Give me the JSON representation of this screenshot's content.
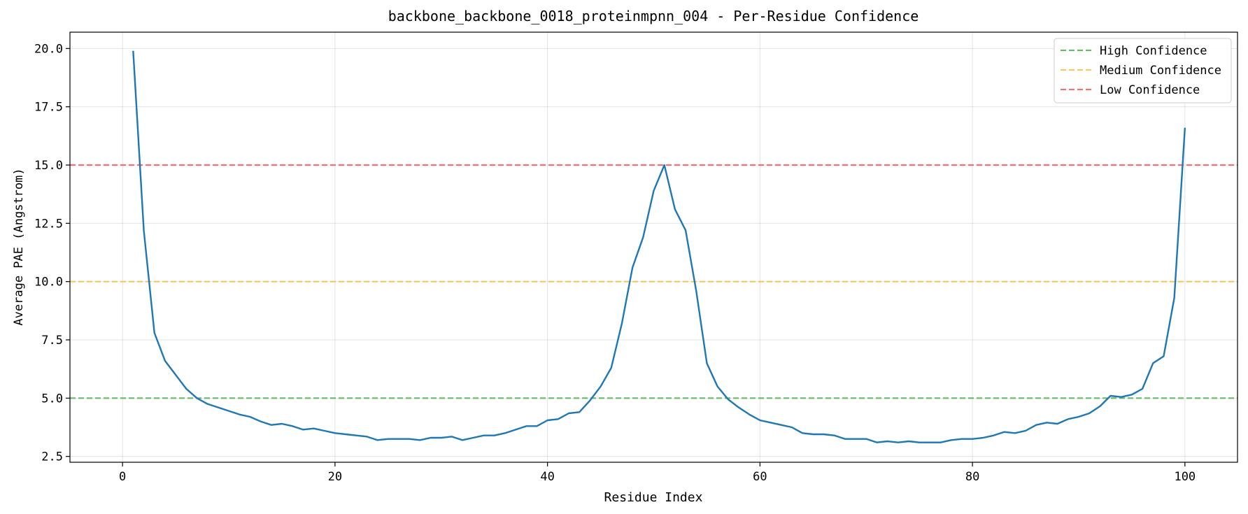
{
  "chart_data": {
    "type": "line",
    "title": "backbone_backbone_0018_proteinmpnn_004 - Per-Residue Confidence",
    "xlabel": "Residue Index",
    "ylabel": "Average PAE (Angstrom)",
    "xlim": [
      -4.95,
      104.95
    ],
    "ylim": [
      2.25,
      20.7
    ],
    "xticks": [
      0,
      20,
      40,
      60,
      80,
      100
    ],
    "yticks": [
      2.5,
      5.0,
      7.5,
      10.0,
      12.5,
      15.0,
      17.5,
      20.0
    ],
    "xtick_labels": [
      "0",
      "20",
      "40",
      "60",
      "80",
      "100"
    ],
    "ytick_labels": [
      "2.5",
      "5.0",
      "7.5",
      "10.0",
      "12.5",
      "15.0",
      "17.5",
      "20.0"
    ],
    "grid": true,
    "legend_position": "top-right",
    "series": [
      {
        "color": "#1f77b4",
        "x": [
          1,
          2,
          3,
          4,
          5,
          6,
          7,
          8,
          9,
          10,
          11,
          12,
          13,
          14,
          15,
          16,
          17,
          18,
          19,
          20,
          21,
          22,
          23,
          24,
          25,
          26,
          27,
          28,
          29,
          30,
          31,
          32,
          33,
          34,
          35,
          36,
          37,
          38,
          39,
          40,
          41,
          42,
          43,
          44,
          45,
          46,
          47,
          48,
          49,
          50,
          51,
          52,
          53,
          54,
          55,
          56,
          57,
          58,
          59,
          60,
          61,
          62,
          63,
          64,
          65,
          66,
          67,
          68,
          69,
          70,
          71,
          72,
          73,
          74,
          75,
          76,
          77,
          78,
          79,
          80,
          81,
          82,
          83,
          84,
          85,
          86,
          87,
          88,
          89,
          90,
          91,
          92,
          93,
          94,
          95,
          96,
          97,
          98,
          99,
          100
        ],
        "y": [
          19.9,
          12.2,
          7.8,
          6.6,
          6.0,
          5.4,
          5.0,
          4.75,
          4.6,
          4.45,
          4.3,
          4.2,
          4.0,
          3.85,
          3.9,
          3.8,
          3.65,
          3.7,
          3.6,
          3.5,
          3.45,
          3.4,
          3.35,
          3.2,
          3.25,
          3.25,
          3.25,
          3.2,
          3.3,
          3.3,
          3.35,
          3.2,
          3.3,
          3.4,
          3.4,
          3.5,
          3.65,
          3.8,
          3.8,
          4.05,
          4.1,
          4.35,
          4.4,
          4.9,
          5.5,
          6.3,
          8.2,
          10.6,
          11.9,
          13.9,
          15.0,
          13.1,
          12.2,
          9.6,
          6.5,
          5.5,
          4.95,
          4.6,
          4.3,
          4.05,
          3.95,
          3.85,
          3.75,
          3.5,
          3.45,
          3.45,
          3.4,
          3.25,
          3.25,
          3.25,
          3.1,
          3.15,
          3.1,
          3.15,
          3.1,
          3.1,
          3.1,
          3.2,
          3.25,
          3.25,
          3.3,
          3.4,
          3.55,
          3.5,
          3.6,
          3.85,
          3.95,
          3.9,
          4.1,
          4.2,
          4.35,
          4.65,
          5.1,
          5.05,
          5.15,
          5.4,
          6.5,
          6.8,
          9.3,
          16.6
        ]
      }
    ],
    "reference_lines": [
      {
        "name": "High Confidence",
        "y": 5.0,
        "color": "#4caf50"
      },
      {
        "name": "Medium Confidence",
        "y": 10.0,
        "color": "#f5c14e"
      },
      {
        "name": "Low Confidence",
        "y": 15.0,
        "color": "#f25c5c"
      }
    ]
  }
}
